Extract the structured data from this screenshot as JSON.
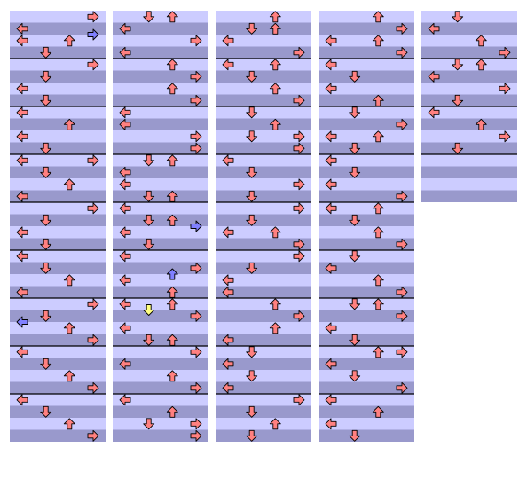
{
  "app": {
    "title": "",
    "background": "#ffffff"
  },
  "palette": {
    "stripe_light": "#ccccff",
    "stripe_dark": "#9999cc",
    "measure_line": "#000000",
    "note_4th": "#ff8080",
    "note_8th": "#8080ff",
    "note_16th": "#ffff80",
    "note_outline": "#000000"
  },
  "notation": {
    "measures_per_column": 9,
    "beats_per_measure": 4,
    "column_measure_counts": [
      9,
      9,
      9,
      9,
      4
    ],
    "lanes": [
      "left",
      "down",
      "up",
      "right"
    ]
  },
  "legend": {
    "arrow-left": "left-arrow-icon",
    "arrow-down": "down-arrow-icon",
    "arrow-up": "up-arrow-icon",
    "arrow-right": "right-arrow-icon"
  },
  "notes": [
    {
      "m": 0,
      "b": 0.0,
      "lanes": [
        "right"
      ],
      "type": "4th"
    },
    {
      "m": 0,
      "b": 1.0,
      "lanes": [
        "left"
      ],
      "type": "4th"
    },
    {
      "m": 0,
      "b": 1.5,
      "lanes": [
        "right"
      ],
      "type": "8th"
    },
    {
      "m": 0,
      "b": 2.0,
      "lanes": [
        "left",
        "up"
      ],
      "type": "4th"
    },
    {
      "m": 0,
      "b": 3.0,
      "lanes": [
        "down"
      ],
      "type": "4th"
    },
    {
      "m": 1,
      "b": 0.0,
      "lanes": [
        "right"
      ],
      "type": "4th"
    },
    {
      "m": 1,
      "b": 1.0,
      "lanes": [
        "down"
      ],
      "type": "4th"
    },
    {
      "m": 1,
      "b": 2.0,
      "lanes": [
        "left"
      ],
      "type": "4th"
    },
    {
      "m": 1,
      "b": 3.0,
      "lanes": [
        "down"
      ],
      "type": "4th"
    },
    {
      "m": 2,
      "b": 0.0,
      "lanes": [
        "left"
      ],
      "type": "4th"
    },
    {
      "m": 2,
      "b": 1.0,
      "lanes": [
        "up"
      ],
      "type": "4th"
    },
    {
      "m": 2,
      "b": 2.0,
      "lanes": [
        "left"
      ],
      "type": "4th"
    },
    {
      "m": 2,
      "b": 3.0,
      "lanes": [
        "down"
      ],
      "type": "4th"
    },
    {
      "m": 3,
      "b": 0.0,
      "lanes": [
        "left",
        "right"
      ],
      "type": "4th"
    },
    {
      "m": 3,
      "b": 1.0,
      "lanes": [
        "down"
      ],
      "type": "4th"
    },
    {
      "m": 3,
      "b": 2.0,
      "lanes": [
        "up"
      ],
      "type": "4th"
    },
    {
      "m": 3,
      "b": 3.0,
      "lanes": [
        "left"
      ],
      "type": "4th"
    },
    {
      "m": 4,
      "b": 0.0,
      "lanes": [
        "right"
      ],
      "type": "4th"
    },
    {
      "m": 4,
      "b": 1.0,
      "lanes": [
        "down"
      ],
      "type": "4th"
    },
    {
      "m": 4,
      "b": 2.0,
      "lanes": [
        "left"
      ],
      "type": "4th"
    },
    {
      "m": 4,
      "b": 3.0,
      "lanes": [
        "down"
      ],
      "type": "4th"
    },
    {
      "m": 5,
      "b": 0.0,
      "lanes": [
        "left"
      ],
      "type": "4th"
    },
    {
      "m": 5,
      "b": 1.0,
      "lanes": [
        "down"
      ],
      "type": "4th"
    },
    {
      "m": 5,
      "b": 2.0,
      "lanes": [
        "up"
      ],
      "type": "4th"
    },
    {
      "m": 5,
      "b": 3.0,
      "lanes": [
        "left"
      ],
      "type": "4th"
    },
    {
      "m": 6,
      "b": 0.0,
      "lanes": [
        "right"
      ],
      "type": "4th"
    },
    {
      "m": 6,
      "b": 1.0,
      "lanes": [
        "down"
      ],
      "type": "4th"
    },
    {
      "m": 6,
      "b": 1.5,
      "lanes": [
        "left"
      ],
      "type": "8th"
    },
    {
      "m": 6,
      "b": 2.0,
      "lanes": [
        "up"
      ],
      "type": "4th"
    },
    {
      "m": 6,
      "b": 3.0,
      "lanes": [
        "right"
      ],
      "type": "4th"
    },
    {
      "m": 7,
      "b": 0.0,
      "lanes": [
        "left"
      ],
      "type": "4th"
    },
    {
      "m": 7,
      "b": 1.0,
      "lanes": [
        "down"
      ],
      "type": "4th"
    },
    {
      "m": 7,
      "b": 2.0,
      "lanes": [
        "up"
      ],
      "type": "4th"
    },
    {
      "m": 7,
      "b": 3.0,
      "lanes": [
        "right"
      ],
      "type": "4th"
    },
    {
      "m": 8,
      "b": 0.0,
      "lanes": [
        "left"
      ],
      "type": "4th"
    },
    {
      "m": 8,
      "b": 1.0,
      "lanes": [
        "down"
      ],
      "type": "4th"
    },
    {
      "m": 8,
      "b": 2.0,
      "lanes": [
        "up"
      ],
      "type": "4th"
    },
    {
      "m": 8,
      "b": 3.0,
      "lanes": [
        "right"
      ],
      "type": "4th"
    },
    {
      "m": 9,
      "b": 0.0,
      "lanes": [
        "down",
        "up"
      ],
      "type": "4th"
    },
    {
      "m": 9,
      "b": 1.0,
      "lanes": [
        "left"
      ],
      "type": "4th"
    },
    {
      "m": 9,
      "b": 2.0,
      "lanes": [
        "right"
      ],
      "type": "4th"
    },
    {
      "m": 9,
      "b": 3.0,
      "lanes": [
        "left"
      ],
      "type": "4th"
    },
    {
      "m": 10,
      "b": 0.0,
      "lanes": [
        "up"
      ],
      "type": "4th"
    },
    {
      "m": 10,
      "b": 1.0,
      "lanes": [
        "right"
      ],
      "type": "4th"
    },
    {
      "m": 10,
      "b": 2.0,
      "lanes": [
        "up"
      ],
      "type": "4th"
    },
    {
      "m": 10,
      "b": 3.0,
      "lanes": [
        "right"
      ],
      "type": "4th"
    },
    {
      "m": 11,
      "b": 0.0,
      "lanes": [
        "left"
      ],
      "type": "4th"
    },
    {
      "m": 11,
      "b": 1.0,
      "lanes": [
        "left"
      ],
      "type": "4th"
    },
    {
      "m": 11,
      "b": 2.0,
      "lanes": [
        "right"
      ],
      "type": "4th"
    },
    {
      "m": 11,
      "b": 3.0,
      "lanes": [
        "right"
      ],
      "type": "4th"
    },
    {
      "m": 12,
      "b": 0.0,
      "lanes": [
        "down",
        "up"
      ],
      "type": "4th"
    },
    {
      "m": 12,
      "b": 1.0,
      "lanes": [
        "left"
      ],
      "type": "4th"
    },
    {
      "m": 12,
      "b": 2.0,
      "lanes": [
        "left"
      ],
      "type": "4th"
    },
    {
      "m": 12,
      "b": 3.0,
      "lanes": [
        "down",
        "up"
      ],
      "type": "4th"
    },
    {
      "m": 13,
      "b": 0.0,
      "lanes": [
        "left"
      ],
      "type": "4th"
    },
    {
      "m": 13,
      "b": 1.0,
      "lanes": [
        "down",
        "up"
      ],
      "type": "4th"
    },
    {
      "m": 13,
      "b": 1.5,
      "lanes": [
        "right"
      ],
      "type": "8th"
    },
    {
      "m": 13,
      "b": 2.0,
      "lanes": [
        "left"
      ],
      "type": "4th"
    },
    {
      "m": 13,
      "b": 3.0,
      "lanes": [
        "down"
      ],
      "type": "4th"
    },
    {
      "m": 14,
      "b": 0.0,
      "lanes": [
        "left"
      ],
      "type": "4th"
    },
    {
      "m": 14,
      "b": 1.0,
      "lanes": [
        "right"
      ],
      "type": "4th"
    },
    {
      "m": 14,
      "b": 1.5,
      "lanes": [
        "up"
      ],
      "type": "8th"
    },
    {
      "m": 14,
      "b": 2.0,
      "lanes": [
        "left"
      ],
      "type": "4th"
    },
    {
      "m": 14,
      "b": 3.0,
      "lanes": [
        "up"
      ],
      "type": "4th"
    },
    {
      "m": 15,
      "b": 0.0,
      "lanes": [
        "left",
        "up"
      ],
      "type": "4th"
    },
    {
      "m": 15,
      "b": 0.5,
      "lanes": [
        "down"
      ],
      "type": "16th"
    },
    {
      "m": 15,
      "b": 1.0,
      "lanes": [
        "right"
      ],
      "type": "4th"
    },
    {
      "m": 15,
      "b": 2.0,
      "lanes": [
        "left"
      ],
      "type": "4th"
    },
    {
      "m": 15,
      "b": 3.0,
      "lanes": [
        "down",
        "up"
      ],
      "type": "4th"
    },
    {
      "m": 16,
      "b": 0.0,
      "lanes": [
        "right"
      ],
      "type": "4th"
    },
    {
      "m": 16,
      "b": 1.0,
      "lanes": [
        "left"
      ],
      "type": "4th"
    },
    {
      "m": 16,
      "b": 2.0,
      "lanes": [
        "up"
      ],
      "type": "4th"
    },
    {
      "m": 16,
      "b": 3.0,
      "lanes": [
        "right"
      ],
      "type": "4th"
    },
    {
      "m": 17,
      "b": 0.0,
      "lanes": [
        "left"
      ],
      "type": "4th"
    },
    {
      "m": 17,
      "b": 1.0,
      "lanes": [
        "up"
      ],
      "type": "4th"
    },
    {
      "m": 17,
      "b": 2.0,
      "lanes": [
        "down",
        "right"
      ],
      "type": "4th"
    },
    {
      "m": 17,
      "b": 3.0,
      "lanes": [
        "right"
      ],
      "type": "4th"
    },
    {
      "m": 18,
      "b": 0.0,
      "lanes": [
        "up"
      ],
      "type": "4th"
    },
    {
      "m": 18,
      "b": 1.0,
      "lanes": [
        "down",
        "up"
      ],
      "type": "4th"
    },
    {
      "m": 18,
      "b": 2.0,
      "lanes": [
        "left"
      ],
      "type": "4th"
    },
    {
      "m": 18,
      "b": 3.0,
      "lanes": [
        "right"
      ],
      "type": "4th"
    },
    {
      "m": 19,
      "b": 0.0,
      "lanes": [
        "left",
        "up"
      ],
      "type": "4th"
    },
    {
      "m": 19,
      "b": 1.0,
      "lanes": [
        "down"
      ],
      "type": "4th"
    },
    {
      "m": 19,
      "b": 2.0,
      "lanes": [
        "up"
      ],
      "type": "4th"
    },
    {
      "m": 19,
      "b": 3.0,
      "lanes": [
        "right"
      ],
      "type": "4th"
    },
    {
      "m": 20,
      "b": 0.0,
      "lanes": [
        "down"
      ],
      "type": "4th"
    },
    {
      "m": 20,
      "b": 1.0,
      "lanes": [
        "up"
      ],
      "type": "4th"
    },
    {
      "m": 20,
      "b": 2.0,
      "lanes": [
        "down",
        "right"
      ],
      "type": "4th"
    },
    {
      "m": 20,
      "b": 3.0,
      "lanes": [
        "right"
      ],
      "type": "4th"
    },
    {
      "m": 21,
      "b": 0.0,
      "lanes": [
        "left"
      ],
      "type": "4th"
    },
    {
      "m": 21,
      "b": 1.0,
      "lanes": [
        "down"
      ],
      "type": "4th"
    },
    {
      "m": 21,
      "b": 2.0,
      "lanes": [
        "right"
      ],
      "type": "4th"
    },
    {
      "m": 21,
      "b": 3.0,
      "lanes": [
        "down"
      ],
      "type": "4th"
    },
    {
      "m": 22,
      "b": 0.0,
      "lanes": [
        "right"
      ],
      "type": "4th"
    },
    {
      "m": 22,
      "b": 1.0,
      "lanes": [
        "down"
      ],
      "type": "4th"
    },
    {
      "m": 22,
      "b": 2.0,
      "lanes": [
        "left",
        "up"
      ],
      "type": "4th"
    },
    {
      "m": 22,
      "b": 3.0,
      "lanes": [
        "right"
      ],
      "type": "4th"
    },
    {
      "m": 23,
      "b": 0.0,
      "lanes": [
        "right"
      ],
      "type": "4th"
    },
    {
      "m": 23,
      "b": 1.0,
      "lanes": [
        "down"
      ],
      "type": "4th"
    },
    {
      "m": 23,
      "b": 2.0,
      "lanes": [
        "left"
      ],
      "type": "4th"
    },
    {
      "m": 23,
      "b": 3.0,
      "lanes": [
        "left"
      ],
      "type": "4th"
    },
    {
      "m": 24,
      "b": 0.0,
      "lanes": [
        "up"
      ],
      "type": "4th"
    },
    {
      "m": 24,
      "b": 1.0,
      "lanes": [
        "right"
      ],
      "type": "4th"
    },
    {
      "m": 24,
      "b": 2.0,
      "lanes": [
        "up"
      ],
      "type": "4th"
    },
    {
      "m": 24,
      "b": 3.0,
      "lanes": [
        "left"
      ],
      "type": "4th"
    },
    {
      "m": 25,
      "b": 0.0,
      "lanes": [
        "down"
      ],
      "type": "4th"
    },
    {
      "m": 25,
      "b": 1.0,
      "lanes": [
        "left"
      ],
      "type": "4th"
    },
    {
      "m": 25,
      "b": 2.0,
      "lanes": [
        "down"
      ],
      "type": "4th"
    },
    {
      "m": 25,
      "b": 3.0,
      "lanes": [
        "left"
      ],
      "type": "4th"
    },
    {
      "m": 26,
      "b": 0.0,
      "lanes": [
        "right"
      ],
      "type": "4th"
    },
    {
      "m": 26,
      "b": 1.0,
      "lanes": [
        "down"
      ],
      "type": "4th"
    },
    {
      "m": 26,
      "b": 2.0,
      "lanes": [
        "up"
      ],
      "type": "4th"
    },
    {
      "m": 26,
      "b": 3.0,
      "lanes": [
        "down"
      ],
      "type": "4th"
    },
    {
      "m": 27,
      "b": 0.0,
      "lanes": [
        "up"
      ],
      "type": "4th"
    },
    {
      "m": 27,
      "b": 1.0,
      "lanes": [
        "right"
      ],
      "type": "4th"
    },
    {
      "m": 27,
      "b": 2.0,
      "lanes": [
        "left",
        "up"
      ],
      "type": "4th"
    },
    {
      "m": 27,
      "b": 3.0,
      "lanes": [
        "right"
      ],
      "type": "4th"
    },
    {
      "m": 28,
      "b": 0.0,
      "lanes": [
        "left"
      ],
      "type": "4th"
    },
    {
      "m": 28,
      "b": 1.0,
      "lanes": [
        "down"
      ],
      "type": "4th"
    },
    {
      "m": 28,
      "b": 2.0,
      "lanes": [
        "left"
      ],
      "type": "4th"
    },
    {
      "m": 28,
      "b": 3.0,
      "lanes": [
        "up"
      ],
      "type": "4th"
    },
    {
      "m": 29,
      "b": 0.0,
      "lanes": [
        "down"
      ],
      "type": "4th"
    },
    {
      "m": 29,
      "b": 1.0,
      "lanes": [
        "right"
      ],
      "type": "4th"
    },
    {
      "m": 29,
      "b": 2.0,
      "lanes": [
        "left",
        "up"
      ],
      "type": "4th"
    },
    {
      "m": 29,
      "b": 3.0,
      "lanes": [
        "down"
      ],
      "type": "4th"
    },
    {
      "m": 30,
      "b": 0.0,
      "lanes": [
        "left"
      ],
      "type": "4th"
    },
    {
      "m": 30,
      "b": 1.0,
      "lanes": [
        "down"
      ],
      "type": "4th"
    },
    {
      "m": 30,
      "b": 2.0,
      "lanes": [
        "left"
      ],
      "type": "4th"
    },
    {
      "m": 30,
      "b": 3.0,
      "lanes": [
        "right"
      ],
      "type": "4th"
    },
    {
      "m": 31,
      "b": 0.0,
      "lanes": [
        "left",
        "up"
      ],
      "type": "4th"
    },
    {
      "m": 31,
      "b": 1.0,
      "lanes": [
        "down"
      ],
      "type": "4th"
    },
    {
      "m": 31,
      "b": 2.0,
      "lanes": [
        "up"
      ],
      "type": "4th"
    },
    {
      "m": 31,
      "b": 3.0,
      "lanes": [
        "right"
      ],
      "type": "4th"
    },
    {
      "m": 32,
      "b": 0.0,
      "lanes": [
        "down"
      ],
      "type": "4th"
    },
    {
      "m": 32,
      "b": 1.0,
      "lanes": [
        "left"
      ],
      "type": "4th"
    },
    {
      "m": 32,
      "b": 2.0,
      "lanes": [
        "up"
      ],
      "type": "4th"
    },
    {
      "m": 32,
      "b": 3.0,
      "lanes": [
        "right"
      ],
      "type": "4th"
    },
    {
      "m": 33,
      "b": 0.0,
      "lanes": [
        "down",
        "up"
      ],
      "type": "4th"
    },
    {
      "m": 33,
      "b": 1.0,
      "lanes": [
        "right"
      ],
      "type": "4th"
    },
    {
      "m": 33,
      "b": 2.0,
      "lanes": [
        "left"
      ],
      "type": "4th"
    },
    {
      "m": 33,
      "b": 3.0,
      "lanes": [
        "down"
      ],
      "type": "4th"
    },
    {
      "m": 34,
      "b": 0.0,
      "lanes": [
        "up",
        "right"
      ],
      "type": "4th"
    },
    {
      "m": 34,
      "b": 1.0,
      "lanes": [
        "left"
      ],
      "type": "4th"
    },
    {
      "m": 34,
      "b": 2.0,
      "lanes": [
        "down"
      ],
      "type": "4th"
    },
    {
      "m": 34,
      "b": 3.0,
      "lanes": [
        "right"
      ],
      "type": "4th"
    },
    {
      "m": 35,
      "b": 0.0,
      "lanes": [
        "left"
      ],
      "type": "4th"
    },
    {
      "m": 35,
      "b": 1.0,
      "lanes": [
        "up"
      ],
      "type": "4th"
    },
    {
      "m": 35,
      "b": 2.0,
      "lanes": [
        "left"
      ],
      "type": "4th"
    },
    {
      "m": 35,
      "b": 3.0,
      "lanes": [
        "down"
      ],
      "type": "4th"
    },
    {
      "m": 36,
      "b": 0.0,
      "lanes": [
        "down"
      ],
      "type": "4th"
    },
    {
      "m": 36,
      "b": 1.0,
      "lanes": [
        "left"
      ],
      "type": "4th"
    },
    {
      "m": 36,
      "b": 2.0,
      "lanes": [
        "up"
      ],
      "type": "4th"
    },
    {
      "m": 36,
      "b": 3.0,
      "lanes": [
        "right"
      ],
      "type": "4th"
    },
    {
      "m": 37,
      "b": 0.0,
      "lanes": [
        "down",
        "up"
      ],
      "type": "4th"
    },
    {
      "m": 37,
      "b": 1.0,
      "lanes": [
        "left"
      ],
      "type": "4th"
    },
    {
      "m": 37,
      "b": 2.0,
      "lanes": [
        "right"
      ],
      "type": "4th"
    },
    {
      "m": 37,
      "b": 3.0,
      "lanes": [
        "down"
      ],
      "type": "4th"
    },
    {
      "m": 38,
      "b": 0.0,
      "lanes": [
        "left"
      ],
      "type": "4th"
    },
    {
      "m": 38,
      "b": 1.0,
      "lanes": [
        "up"
      ],
      "type": "4th"
    },
    {
      "m": 38,
      "b": 2.0,
      "lanes": [
        "right"
      ],
      "type": "4th"
    },
    {
      "m": 38,
      "b": 3.0,
      "lanes": [
        "down"
      ],
      "type": "4th"
    }
  ]
}
